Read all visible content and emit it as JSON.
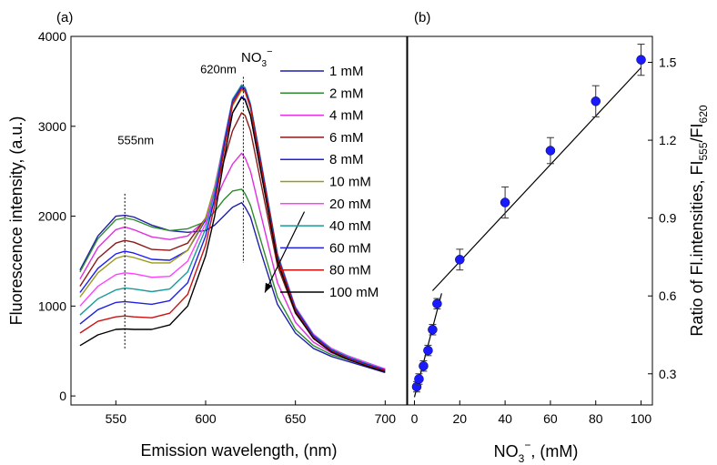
{
  "chart_data": [
    {
      "type": "line",
      "panel_label": "(a)",
      "xlabel": "Emission wavelength, (nm)",
      "ylabel": "Fluorescence intensity, (a.u.)",
      "xlim": [
        525,
        712
      ],
      "ylim": [
        -100,
        4000
      ],
      "xticks": [
        550,
        600,
        650,
        700
      ],
      "yticks": [
        0,
        1000,
        2000,
        3000,
        4000
      ],
      "grid": false,
      "legend_title": "NO",
      "legend_title_sub": "3",
      "legend_title_sup": "−",
      "legend_placement": "top-right",
      "annotations": [
        "555nm",
        "620nm"
      ],
      "marker_lines_x": [
        555,
        621
      ],
      "arrow": {
        "from": [
          655,
          2050
        ],
        "to": [
          633,
          1150
        ]
      },
      "x": [
        530,
        540,
        550,
        555,
        560,
        570,
        580,
        590,
        600,
        605,
        610,
        615,
        620,
        622,
        625,
        630,
        640,
        650,
        660,
        670,
        680,
        690,
        700
      ],
      "series": [
        {
          "name": "1 mM",
          "color": "#1f1fa8",
          "values": [
            1400,
            1780,
            2000,
            2010,
            1990,
            1900,
            1840,
            1820,
            1840,
            1900,
            2000,
            2100,
            2150,
            2100,
            1990,
            1650,
            1020,
            700,
            530,
            440,
            380,
            320,
            260
          ]
        },
        {
          "name": "2 mM",
          "color": "#2e8b2e",
          "values": [
            1380,
            1750,
            1960,
            1980,
            1960,
            1880,
            1840,
            1860,
            1940,
            2050,
            2180,
            2280,
            2300,
            2250,
            2120,
            1780,
            1100,
            740,
            560,
            460,
            400,
            340,
            280
          ]
        },
        {
          "name": "4 mM",
          "color": "#e030e0",
          "values": [
            1300,
            1650,
            1850,
            1880,
            1850,
            1770,
            1740,
            1780,
            1960,
            2150,
            2380,
            2580,
            2700,
            2650,
            2500,
            2080,
            1260,
            820,
            600,
            480,
            410,
            350,
            290
          ]
        },
        {
          "name": "6 mM",
          "color": "#8b1a1a",
          "values": [
            1220,
            1530,
            1700,
            1730,
            1710,
            1630,
            1620,
            1700,
            1980,
            2250,
            2600,
            2950,
            3150,
            3120,
            2950,
            2450,
            1450,
            920,
            650,
            510,
            430,
            360,
            300
          ]
        },
        {
          "name": "8 mM",
          "color": "#1a1aff",
          "values": [
            1150,
            1420,
            1580,
            1610,
            1590,
            1520,
            1510,
            1620,
            1960,
            2300,
            2750,
            3150,
            3330,
            3300,
            3120,
            2580,
            1520,
            960,
            670,
            520,
            440,
            370,
            300
          ]
        },
        {
          "name": "10 mM",
          "color": "#9a9a18",
          "values": [
            1100,
            1370,
            1530,
            1560,
            1540,
            1480,
            1480,
            1620,
            1980,
            2330,
            2800,
            3230,
            3400,
            3380,
            3200,
            2650,
            1560,
            980,
            680,
            530,
            440,
            370,
            300
          ]
        },
        {
          "name": "20 mM",
          "color": "#ff40ff",
          "values": [
            1000,
            1220,
            1350,
            1370,
            1360,
            1320,
            1330,
            1500,
            1920,
            2300,
            2820,
            3300,
            3450,
            3420,
            3240,
            2700,
            1580,
            990,
            690,
            530,
            440,
            370,
            300
          ]
        },
        {
          "name": "40 mM",
          "color": "#1a9a9a",
          "values": [
            900,
            1080,
            1180,
            1200,
            1190,
            1160,
            1190,
            1380,
            1860,
            2270,
            2800,
            3300,
            3460,
            3430,
            3250,
            2700,
            1580,
            980,
            680,
            520,
            430,
            360,
            290
          ]
        },
        {
          "name": "60 mM",
          "color": "#2020e0",
          "values": [
            800,
            960,
            1040,
            1050,
            1040,
            1020,
            1060,
            1260,
            1780,
            2200,
            2760,
            3280,
            3440,
            3410,
            3230,
            2680,
            1560,
            970,
            670,
            510,
            420,
            350,
            290
          ]
        },
        {
          "name": "80 mM",
          "color": "#cc1111",
          "values": [
            700,
            830,
            880,
            890,
            880,
            870,
            920,
            1130,
            1680,
            2120,
            2700,
            3250,
            3420,
            3390,
            3210,
            2650,
            1540,
            950,
            650,
            500,
            410,
            340,
            280
          ]
        },
        {
          "name": "100 mM",
          "color": "#000000",
          "values": [
            560,
            680,
            740,
            745,
            740,
            740,
            790,
            1000,
            1560,
            2000,
            2600,
            3150,
            3320,
            3290,
            3120,
            2580,
            1500,
            930,
            640,
            490,
            400,
            330,
            270
          ]
        }
      ]
    },
    {
      "type": "scatter",
      "panel_label": "(b)",
      "xlabel_main": "NO",
      "xlabel_sub": "3",
      "xlabel_sup": "−",
      "xlabel_tail": ", (mM)",
      "ylabel_main": "Ratio of Fl.intensities, FI",
      "ylabel_sub1": "555",
      "ylabel_mid": "/FI",
      "ylabel_sub2": "620",
      "xlim": [
        -3,
        105
      ],
      "ylim": [
        0.18,
        1.6
      ],
      "xticks": [
        0,
        20,
        40,
        60,
        80,
        100
      ],
      "yticks": [
        0.3,
        0.6,
        0.9,
        1.2,
        1.5
      ],
      "y_axis_side": "right",
      "grid": false,
      "marker_color": "#1a1aff",
      "points": [
        {
          "x": 1,
          "y": 0.25,
          "err": 0.02
        },
        {
          "x": 2,
          "y": 0.28,
          "err": 0.02
        },
        {
          "x": 4,
          "y": 0.33,
          "err": 0.02
        },
        {
          "x": 6,
          "y": 0.39,
          "err": 0.02
        },
        {
          "x": 8,
          "y": 0.47,
          "err": 0.02
        },
        {
          "x": 10,
          "y": 0.57,
          "err": 0.02
        },
        {
          "x": 20,
          "y": 0.74,
          "err": 0.04
        },
        {
          "x": 40,
          "y": 0.96,
          "err": 0.06
        },
        {
          "x": 60,
          "y": 1.16,
          "err": 0.05
        },
        {
          "x": 80,
          "y": 1.35,
          "err": 0.06
        },
        {
          "x": 100,
          "y": 1.51,
          "err": 0.06
        }
      ],
      "fit_lines": [
        {
          "x": [
            0,
            12
          ],
          "y": [
            0.21,
            0.61
          ]
        },
        {
          "x": [
            8,
            100
          ],
          "y": [
            0.62,
            1.48
          ]
        }
      ]
    }
  ]
}
